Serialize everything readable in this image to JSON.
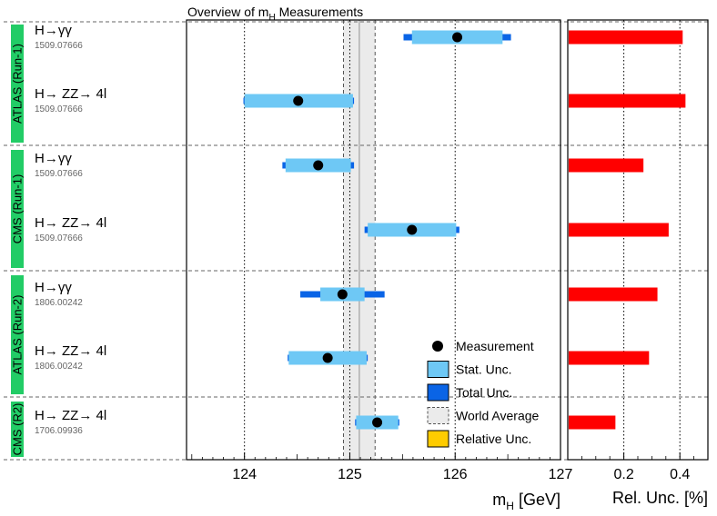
{
  "chart_data": {
    "type": "scatter",
    "title": "Overview of m",
    "title_sub": "H",
    "title_suffix": " Measurements",
    "xlabel": "m",
    "xlabel_sub": "H",
    "xlabel_unit": " [GeV]",
    "xlim": [
      123.45,
      127.0
    ],
    "xticks": [
      "124",
      "125",
      "126",
      "127"
    ],
    "world_average": {
      "value": 125.09,
      "low": 124.94,
      "high": 125.24
    },
    "groups": [
      {
        "name": "ATLAS (Run-1)",
        "color": "#22cc66"
      },
      {
        "name": "CMS (Run-1)",
        "color": "#22cc66"
      },
      {
        "name": "ATLAS (Run-2)",
        "color": "#22cc66"
      },
      {
        "name": "CMS (R2)",
        "color": "#22cc66"
      }
    ],
    "measurements": [
      {
        "group": 0,
        "channel": "H→γγ",
        "ref": "1509.07666",
        "value": 126.02,
        "stat": [
          125.59,
          126.45
        ],
        "total": [
          125.51,
          126.53
        ],
        "rel_unc": 0.41
      },
      {
        "group": 0,
        "channel": "H→ ZZ→ 4l",
        "ref": "1509.07666",
        "value": 124.51,
        "stat": [
          124.0,
          125.03
        ],
        "total": [
          123.99,
          125.04
        ],
        "rel_unc": 0.42
      },
      {
        "group": 1,
        "channel": "H→γγ",
        "ref": "1509.07666",
        "value": 124.7,
        "stat": [
          124.39,
          125.01
        ],
        "total": [
          124.36,
          125.04
        ],
        "rel_unc": 0.27
      },
      {
        "group": 1,
        "channel": "H→ ZZ→ 4l",
        "ref": "1509.07666",
        "value": 125.59,
        "stat": [
          125.17,
          126.01
        ],
        "total": [
          125.14,
          126.04
        ],
        "rel_unc": 0.36
      },
      {
        "group": 2,
        "channel": "H→γγ",
        "ref": "1806.00242",
        "value": 124.93,
        "stat": [
          124.72,
          125.14
        ],
        "total": [
          124.53,
          125.33
        ],
        "rel_unc": 0.32
      },
      {
        "group": 2,
        "channel": "H→ ZZ→ 4l",
        "ref": "1806.00242",
        "value": 124.79,
        "stat": [
          124.42,
          125.16
        ],
        "total": [
          124.41,
          125.17
        ],
        "rel_unc": 0.29
      },
      {
        "group": 3,
        "channel": "H→ ZZ→ 4l",
        "ref": "1706.09936",
        "value": 125.26,
        "stat": [
          125.06,
          125.46
        ],
        "total": [
          125.05,
          125.47
        ],
        "rel_unc": 0.17
      }
    ],
    "rel_panel": {
      "xlabel": "Rel. Unc. [%]",
      "xlim": [
        0.0,
        0.5
      ],
      "xticks": [
        "0.2",
        "0.4"
      ],
      "xtick_values": [
        0.2,
        0.4
      ]
    },
    "legend": {
      "placement": "bottom-right",
      "items": [
        {
          "label": "Measurement",
          "kind": "marker"
        },
        {
          "label": "Stat. Unc.",
          "kind": "stat"
        },
        {
          "label": "Total Unc.",
          "kind": "total"
        },
        {
          "label": "World Average",
          "kind": "world"
        },
        {
          "label": "Relative Unc.",
          "kind": "relative"
        }
      ]
    },
    "colors": {
      "stat": "#6ec8f5",
      "total": "#0a64e6",
      "marker": "#000000",
      "relative_bar": "#ff0000",
      "relative_legend": "#ffcc00",
      "world_band": "#ebebeb",
      "group_label": "#22cc66"
    },
    "grid": true
  }
}
